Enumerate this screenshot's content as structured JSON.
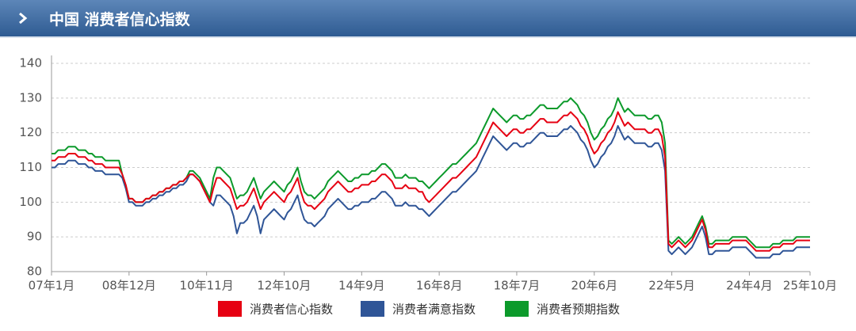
{
  "chart_data": {
    "type": "line",
    "title": "中国 消费者信心指数",
    "categories": [
      "07年1月",
      null,
      null,
      null,
      null,
      null,
      null,
      null,
      null,
      null,
      null,
      null,
      null,
      null,
      null,
      null,
      null,
      null,
      null,
      null,
      null,
      null,
      null,
      "08年12月",
      null,
      null,
      null,
      null,
      null,
      null,
      null,
      null,
      null,
      null,
      null,
      null,
      null,
      null,
      null,
      null,
      null,
      null,
      null,
      null,
      null,
      null,
      "10年11月",
      null,
      null,
      null,
      null,
      null,
      null,
      null,
      null,
      null,
      null,
      null,
      null,
      null,
      null,
      null,
      null,
      null,
      null,
      null,
      null,
      null,
      null,
      "12年10月",
      null,
      null,
      null,
      null,
      null,
      null,
      null,
      null,
      null,
      null,
      null,
      null,
      null,
      null,
      null,
      null,
      null,
      null,
      null,
      null,
      null,
      null,
      "14年9月",
      null,
      null,
      null,
      null,
      null,
      null,
      null,
      null,
      null,
      null,
      null,
      null,
      null,
      null,
      null,
      null,
      null,
      null,
      null,
      null,
      null,
      null,
      "16年8月",
      null,
      null,
      null,
      null,
      null,
      null,
      null,
      null,
      null,
      null,
      null,
      null,
      null,
      null,
      null,
      null,
      null,
      null,
      null,
      null,
      null,
      null,
      "18年7月",
      null,
      null,
      null,
      null,
      null,
      null,
      null,
      null,
      null,
      null,
      null,
      null,
      null,
      null,
      null,
      null,
      null,
      null,
      null,
      null,
      null,
      null,
      "20年6月",
      null,
      null,
      null,
      null,
      null,
      null,
      null,
      null,
      null,
      null,
      null,
      null,
      null,
      null,
      null,
      null,
      null,
      null,
      null,
      null,
      null,
      null,
      "22年5月",
      null,
      null,
      null,
      null,
      null,
      null,
      null,
      null,
      null,
      null,
      null,
      null,
      null,
      null,
      null,
      null,
      null,
      null,
      null,
      null,
      null,
      null,
      "24年4月",
      null,
      null,
      null,
      null,
      null,
      null,
      null,
      null,
      null,
      null,
      null,
      null,
      null,
      null,
      null,
      null,
      null,
      "25年10月"
    ],
    "series": [
      {
        "name": "消费者信心指数",
        "color": "#e60012",
        "values": [
          112,
          112,
          113,
          113,
          113,
          114,
          114,
          114,
          113,
          113,
          113,
          112,
          112,
          111,
          111,
          111,
          110,
          110,
          110,
          110,
          110,
          108,
          105,
          101,
          101,
          100,
          100,
          100,
          101,
          101,
          102,
          102,
          103,
          103,
          104,
          104,
          105,
          105,
          106,
          106,
          107,
          108,
          108,
          107,
          106,
          104,
          102,
          100,
          104,
          107,
          107,
          106,
          105,
          104,
          101,
          98,
          99,
          99,
          100,
          102,
          104,
          101,
          98,
          100,
          101,
          102,
          103,
          102,
          101,
          100,
          102,
          103,
          105,
          107,
          103,
          100,
          99,
          99,
          98,
          99,
          100,
          101,
          103,
          104,
          105,
          106,
          105,
          104,
          103,
          103,
          104,
          104,
          105,
          105,
          105,
          106,
          106,
          107,
          108,
          108,
          107,
          106,
          104,
          104,
          104,
          105,
          104,
          104,
          104,
          103,
          103,
          101,
          100,
          101,
          102,
          103,
          104,
          105,
          106,
          107,
          107,
          108,
          109,
          110,
          111,
          112,
          113,
          115,
          117,
          119,
          121,
          123,
          122,
          121,
          120,
          119,
          120,
          121,
          121,
          120,
          120,
          121,
          121,
          122,
          123,
          124,
          124,
          123,
          123,
          123,
          123,
          124,
          125,
          125,
          126,
          125,
          124,
          122,
          121,
          119,
          116,
          114,
          115,
          117,
          118,
          120,
          121,
          123,
          126,
          124,
          122,
          123,
          122,
          121,
          121,
          121,
          121,
          120,
          120,
          121,
          121,
          119,
          113,
          88,
          87,
          88,
          89,
          88,
          87,
          88,
          89,
          91,
          93,
          95,
          92,
          87,
          87,
          88,
          88,
          88,
          88,
          88,
          89,
          89,
          89,
          89,
          89,
          88,
          87,
          86,
          86,
          86,
          86,
          86,
          87,
          87,
          87,
          88,
          88,
          88,
          88,
          89,
          89,
          89,
          89,
          89
        ]
      },
      {
        "name": "消费者满意指数",
        "color": "#2f5597",
        "values": [
          110,
          110,
          111,
          111,
          111,
          112,
          112,
          112,
          111,
          111,
          111,
          110,
          110,
          109,
          109,
          109,
          108,
          108,
          108,
          108,
          108,
          107,
          104,
          100,
          100,
          99,
          99,
          99,
          100,
          100,
          101,
          101,
          102,
          102,
          103,
          103,
          104,
          104,
          105,
          105,
          106,
          108,
          108,
          107,
          106,
          104,
          102,
          100,
          99,
          102,
          102,
          101,
          100,
          99,
          96,
          91,
          94,
          94,
          95,
          97,
          99,
          96,
          91,
          95,
          96,
          97,
          98,
          97,
          96,
          95,
          97,
          98,
          100,
          102,
          98,
          95,
          94,
          94,
          93,
          94,
          95,
          96,
          98,
          99,
          100,
          101,
          100,
          99,
          98,
          98,
          99,
          99,
          100,
          100,
          100,
          101,
          101,
          102,
          103,
          103,
          102,
          101,
          99,
          99,
          99,
          100,
          99,
          99,
          99,
          98,
          98,
          97,
          96,
          97,
          98,
          99,
          100,
          101,
          102,
          103,
          103,
          104,
          105,
          106,
          107,
          108,
          109,
          111,
          113,
          115,
          117,
          119,
          118,
          117,
          116,
          115,
          116,
          117,
          117,
          116,
          116,
          117,
          117,
          118,
          119,
          120,
          120,
          119,
          119,
          119,
          119,
          120,
          121,
          121,
          122,
          121,
          120,
          118,
          117,
          115,
          112,
          110,
          111,
          113,
          114,
          116,
          117,
          119,
          122,
          120,
          118,
          119,
          118,
          117,
          117,
          117,
          117,
          116,
          116,
          117,
          117,
          115,
          109,
          86,
          85,
          86,
          87,
          86,
          85,
          86,
          87,
          89,
          91,
          93,
          90,
          85,
          85,
          86,
          86,
          86,
          86,
          86,
          87,
          87,
          87,
          87,
          87,
          86,
          85,
          84,
          84,
          84,
          84,
          84,
          85,
          85,
          85,
          86,
          86,
          86,
          86,
          87,
          87,
          87,
          87,
          87
        ]
      },
      {
        "name": "消费者预期指数",
        "color": "#0c9a2b",
        "values": [
          114,
          114,
          115,
          115,
          115,
          116,
          116,
          116,
          115,
          115,
          115,
          114,
          114,
          113,
          113,
          113,
          112,
          112,
          112,
          112,
          112,
          108,
          105,
          101,
          101,
          100,
          100,
          100,
          101,
          101,
          102,
          102,
          103,
          103,
          104,
          104,
          105,
          105,
          106,
          106,
          107,
          109,
          109,
          108,
          107,
          105,
          103,
          101,
          107,
          110,
          110,
          109,
          108,
          107,
          104,
          101,
          102,
          102,
          103,
          105,
          107,
          104,
          101,
          103,
          104,
          105,
          106,
          105,
          104,
          103,
          105,
          106,
          108,
          110,
          106,
          103,
          102,
          102,
          101,
          102,
          103,
          104,
          106,
          107,
          108,
          109,
          108,
          107,
          106,
          106,
          107,
          107,
          108,
          108,
          108,
          109,
          109,
          110,
          111,
          111,
          110,
          109,
          107,
          107,
          107,
          108,
          107,
          107,
          107,
          106,
          106,
          105,
          104,
          105,
          106,
          107,
          108,
          109,
          110,
          111,
          111,
          112,
          113,
          114,
          115,
          116,
          117,
          119,
          121,
          123,
          125,
          127,
          126,
          125,
          124,
          123,
          124,
          125,
          125,
          124,
          124,
          125,
          125,
          126,
          127,
          128,
          128,
          127,
          127,
          127,
          127,
          128,
          129,
          129,
          130,
          129,
          128,
          126,
          125,
          123,
          120,
          118,
          119,
          121,
          122,
          124,
          125,
          127,
          130,
          128,
          126,
          127,
          126,
          125,
          125,
          125,
          125,
          124,
          124,
          125,
          125,
          123,
          117,
          89,
          88,
          89,
          90,
          89,
          88,
          89,
          90,
          92,
          94,
          96,
          93,
          88,
          88,
          89,
          89,
          89,
          89,
          89,
          90,
          90,
          90,
          90,
          90,
          89,
          88,
          87,
          87,
          87,
          87,
          87,
          88,
          88,
          88,
          89,
          89,
          89,
          89,
          90,
          90,
          90,
          90,
          90
        ]
      }
    ],
    "ylim": [
      80,
      140
    ],
    "yticks": [
      80,
      90,
      100,
      110,
      120,
      130,
      140
    ],
    "grid": true
  }
}
